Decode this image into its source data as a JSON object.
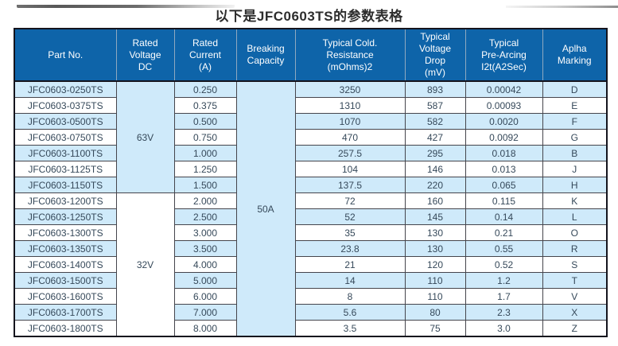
{
  "page": {
    "title": "以下是JFC0603TS的参数表格"
  },
  "colors": {
    "header_bg": "#0e64a9",
    "header_text": "#ffffff",
    "row_stripe": "#cfeafa",
    "row_plain": "#ffffff",
    "body_text": "#36495a",
    "outer_border": "#14141d"
  },
  "table": {
    "columns": [
      {
        "id": "part-no",
        "label": "Part No."
      },
      {
        "id": "rated-voltage-dc",
        "label": "Rated\nVoltage\nDC"
      },
      {
        "id": "rated-current-a",
        "label": "Rated\nCurrent\n(A)"
      },
      {
        "id": "breaking-capacity",
        "label": "Breaking\nCapacity"
      },
      {
        "id": "typical-cold-resistance",
        "label": "Typical Cold.\nResistance\n(mOhms)2"
      },
      {
        "id": "typical-voltage-drop",
        "label": "Typical\nVoltage Drop\n(mV)"
      },
      {
        "id": "typical-pre-arcing",
        "label": "Typical\nPre-Arcing\nI2t(A2Sec)"
      },
      {
        "id": "alpha-marking",
        "label": "Aplha\nMarking"
      }
    ],
    "voltage_groups": [
      {
        "label": "63V",
        "span": 7
      },
      {
        "label": "32V",
        "span": 9
      }
    ],
    "breaking_capacity": {
      "label": "50A",
      "span": 16
    },
    "rows": [
      {
        "part": "JFC0603-0250TS",
        "current": "0.250",
        "resistance": "3250",
        "voltage_drop": "893",
        "pre_arcing": "0.00042",
        "marking": "D"
      },
      {
        "part": "JFC0603-0375TS",
        "current": "0.375",
        "resistance": "1310",
        "voltage_drop": "587",
        "pre_arcing": "0.00093",
        "marking": "E"
      },
      {
        "part": "JFC0603-0500TS",
        "current": "0.500",
        "resistance": "1070",
        "voltage_drop": "582",
        "pre_arcing": "0.0020",
        "marking": "F"
      },
      {
        "part": "JFC0603-0750TS",
        "current": "0.750",
        "resistance": "470",
        "voltage_drop": "427",
        "pre_arcing": "0.0092",
        "marking": "G"
      },
      {
        "part": "JFC0603-1100TS",
        "current": "1.000",
        "resistance": "257.5",
        "voltage_drop": "295",
        "pre_arcing": "0.018",
        "marking": "B"
      },
      {
        "part": "JFC0603-1125TS",
        "current": "1.250",
        "resistance": "104",
        "voltage_drop": "146",
        "pre_arcing": "0.013",
        "marking": "J"
      },
      {
        "part": "JFC0603-1150TS",
        "current": "1.500",
        "resistance": "137.5",
        "voltage_drop": "220",
        "pre_arcing": "0.065",
        "marking": "H"
      },
      {
        "part": "JFC0603-1200TS",
        "current": "2.000",
        "resistance": "72",
        "voltage_drop": "160",
        "pre_arcing": "0.115",
        "marking": "K"
      },
      {
        "part": "JFC0603-1250TS",
        "current": "2.500",
        "resistance": "52",
        "voltage_drop": "145",
        "pre_arcing": "0.14",
        "marking": "L"
      },
      {
        "part": "JFC0603-1300TS",
        "current": "3.000",
        "resistance": "35",
        "voltage_drop": "130",
        "pre_arcing": "0.21",
        "marking": "O"
      },
      {
        "part": "JFC0603-1350TS",
        "current": "3.500",
        "resistance": "23.8",
        "voltage_drop": "130",
        "pre_arcing": "0.55",
        "marking": "R"
      },
      {
        "part": "JFC0603-1400TS",
        "current": "4.000",
        "resistance": "21",
        "voltage_drop": "120",
        "pre_arcing": "0.52",
        "marking": "S"
      },
      {
        "part": "JFC0603-1500TS",
        "current": "5.000",
        "resistance": "14",
        "voltage_drop": "110",
        "pre_arcing": "1.2",
        "marking": "T"
      },
      {
        "part": "JFC0603-1600TS",
        "current": "6.000",
        "resistance": "8",
        "voltage_drop": "110",
        "pre_arcing": "1.7",
        "marking": "V"
      },
      {
        "part": "JFC0603-1700TS",
        "current": "7.000",
        "resistance": "5.6",
        "voltage_drop": "80",
        "pre_arcing": "2.3",
        "marking": "X"
      },
      {
        "part": "JFC0603-1800TS",
        "current": "8.000",
        "resistance": "3.5",
        "voltage_drop": "75",
        "pre_arcing": "3.0",
        "marking": "Z"
      }
    ]
  }
}
